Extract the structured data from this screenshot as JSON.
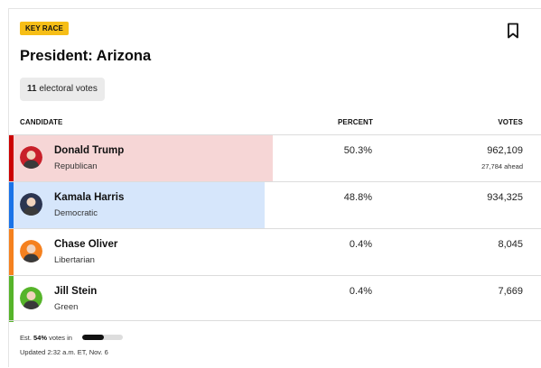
{
  "badge": "KEY RACE",
  "title": "President: Arizona",
  "electoral": {
    "count": "11",
    "label": "electoral votes"
  },
  "table": {
    "headers": {
      "candidate": "CANDIDATE",
      "percent": "PERCENT",
      "votes": "VOTES"
    },
    "rows": [
      {
        "name": "Donald Trump",
        "party": "Republican",
        "percent": "50.3%",
        "votes": "962,109",
        "ahead": "27,784 ahead",
        "party_color": "#cc0000",
        "bar_color": "#f6d6d6",
        "bar_fraction": 0.503,
        "avatar_color": "#c8202a",
        "avatar_icon": "trump-avatar-icon"
      },
      {
        "name": "Kamala Harris",
        "party": "Democratic",
        "percent": "48.8%",
        "votes": "934,325",
        "ahead": "",
        "party_color": "#1a73e8",
        "bar_color": "#d6e6fb",
        "bar_fraction": 0.488,
        "avatar_color": "#2b3550",
        "avatar_icon": "harris-avatar-icon"
      },
      {
        "name": "Chase Oliver",
        "party": "Libertarian",
        "percent": "0.4%",
        "votes": "8,045",
        "ahead": "",
        "party_color": "#f5811f",
        "bar_color": "#fde6d2",
        "bar_fraction": 0.004,
        "avatar_color": "#f5811f",
        "avatar_icon": "oliver-avatar-icon"
      },
      {
        "name": "Jill Stein",
        "party": "Green",
        "percent": "0.4%",
        "votes": "7,669",
        "ahead": "",
        "party_color": "#56b42a",
        "bar_color": "#ddf0d4",
        "bar_fraction": 0.004,
        "avatar_color": "#56b42a",
        "avatar_icon": "stein-avatar-icon"
      }
    ]
  },
  "footer": {
    "est_prefix": "Est.",
    "est_percent": "54%",
    "est_suffix": "votes in",
    "progress_fraction": 0.54,
    "updated": "Updated 2:32 a.m. ET, Nov. 6"
  },
  "icons": {
    "bookmark": "bookmark-icon"
  }
}
